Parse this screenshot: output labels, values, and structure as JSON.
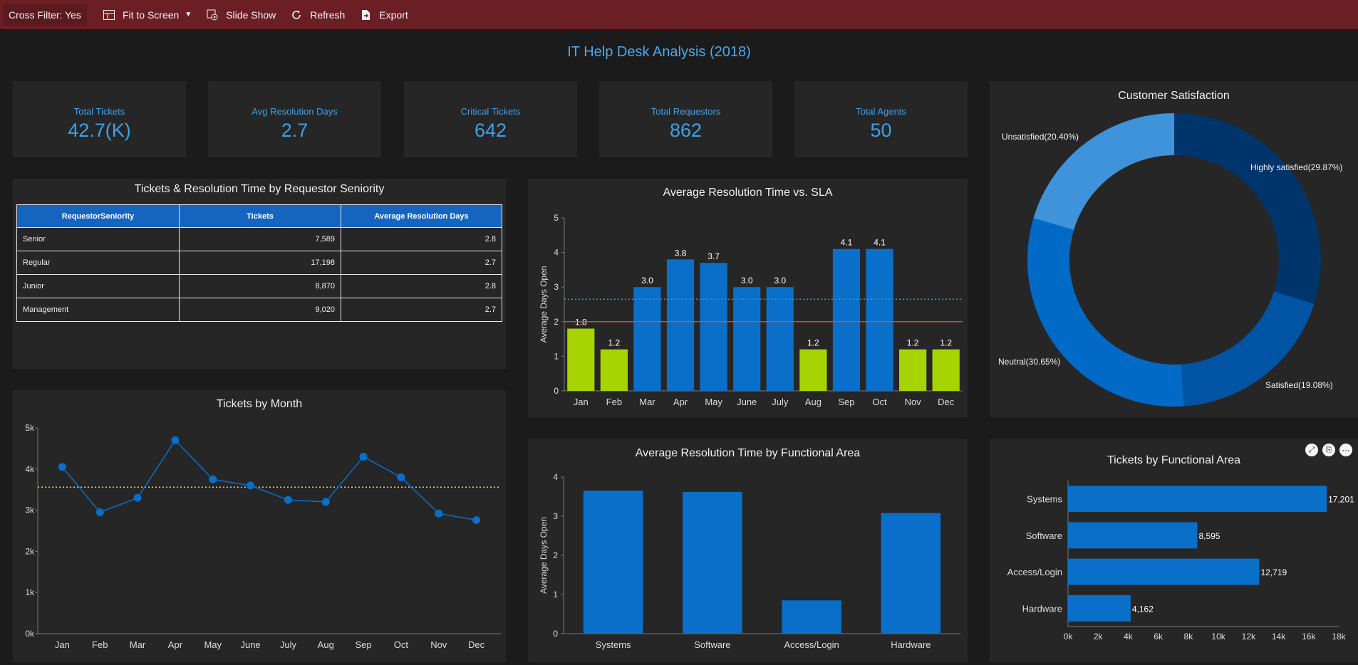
{
  "toolbar": {
    "cross_filter": "Cross Filter: Yes",
    "fit_to_screen": "Fit to Screen",
    "slide_show": "Slide Show",
    "refresh": "Refresh",
    "export": "Export"
  },
  "dashboard_title": "IT Help Desk Analysis (2018)",
  "kpis": [
    {
      "label": "Total Tickets",
      "value": "42.7(K)"
    },
    {
      "label": "Avg Resolution Days",
      "value": "2.7"
    },
    {
      "label": "Critical Tickets",
      "value": "642"
    },
    {
      "label": "Total Requestors",
      "value": "862"
    },
    {
      "label": "Total Agents",
      "value": "50"
    }
  ],
  "seniority_table": {
    "title": "Tickets & Resolution Time by Requestor Seniority",
    "headers": [
      "RequestorSeniority",
      "Tickets",
      "Average Resolution Days"
    ],
    "rows": [
      [
        "Senior",
        "7,589",
        "2.8"
      ],
      [
        "Regular",
        "17,198",
        "2.7"
      ],
      [
        "Junior",
        "8,870",
        "2.8"
      ],
      [
        "Management",
        "9,020",
        "2.7"
      ]
    ]
  },
  "colors": {
    "blue": "#0a6fc9",
    "green": "#a7d400",
    "sla_line": "#e0452a",
    "avg_line": "#2aa7b5",
    "month_avg": "#d8cf7a"
  },
  "chart_data": [
    {
      "id": "sla",
      "type": "bar",
      "title": "Average Resolution Time vs. SLA",
      "ylabel": "Average Days Open",
      "categories": [
        "Jan",
        "Feb",
        "Mar",
        "Apr",
        "May",
        "June",
        "July",
        "Aug",
        "Sep",
        "Oct",
        "Nov",
        "Dec"
      ],
      "values": [
        1.8,
        1.2,
        3.0,
        3.8,
        3.7,
        3.0,
        3.0,
        1.2,
        4.1,
        4.1,
        1.2,
        1.2
      ],
      "labels": [
        "1.8",
        "1.2",
        "3.0",
        "3.8",
        "3.7",
        "3.0",
        "3.0",
        "1.2",
        "4.1",
        "4.1",
        "1.2",
        "1.2"
      ],
      "ylim": [
        0,
        5
      ],
      "yticks": [
        "0",
        "1",
        "2",
        "3",
        "4",
        "5"
      ],
      "sla": 2,
      "average": 2.65
    },
    {
      "id": "month",
      "type": "line",
      "title": "Tickets by Month",
      "categories": [
        "Jan",
        "Feb",
        "Mar",
        "Apr",
        "May",
        "June",
        "July",
        "Aug",
        "Sep",
        "Oct",
        "Nov",
        "Dec"
      ],
      "values": [
        4050,
        2950,
        3300,
        4700,
        3750,
        3600,
        3250,
        3200,
        4300,
        3800,
        2920,
        2760
      ],
      "ylim": [
        0,
        5000
      ],
      "yticks": [
        "0k",
        "1k",
        "2k",
        "3k",
        "4k",
        "5k"
      ],
      "average": 3560
    },
    {
      "id": "area",
      "type": "bar",
      "title": "Average Resolution Time by Functional Area",
      "ylabel": "Average Days Open",
      "categories": [
        "Systems",
        "Software",
        "Access/Login",
        "Hardware"
      ],
      "values": [
        3.65,
        3.62,
        0.85,
        3.08
      ],
      "ylim": [
        0,
        4
      ],
      "yticks": [
        "0",
        "1",
        "2",
        "3",
        "4"
      ]
    },
    {
      "id": "satisfaction",
      "type": "pie",
      "title": "Customer Satisfaction",
      "slices": [
        {
          "label": "Highly satisfied(29.87%)",
          "value": 29.87,
          "color": "#00356b"
        },
        {
          "label": "Satisfied(19.08%)",
          "value": 19.08,
          "color": "#0054a3"
        },
        {
          "label": "Neutral(30.65%)",
          "value": 30.65,
          "color": "#006ac6"
        },
        {
          "label": "Unsatisfied(20.40%)",
          "value": 20.4,
          "color": "#3f93da"
        }
      ]
    },
    {
      "id": "tickets_area",
      "type": "bar",
      "orientation": "horizontal",
      "title": "Tickets by Functional Area",
      "categories": [
        "Systems",
        "Software",
        "Access/Login",
        "Hardware"
      ],
      "values": [
        17201,
        8595,
        12719,
        4162
      ],
      "labels": [
        "17,201",
        "8,595",
        "12,719",
        "4,162"
      ],
      "xlim": [
        0,
        18000
      ],
      "xticks": [
        "0k",
        "2k",
        "4k",
        "6k",
        "8k",
        "10k",
        "12k",
        "14k",
        "16k",
        "18k"
      ]
    }
  ]
}
